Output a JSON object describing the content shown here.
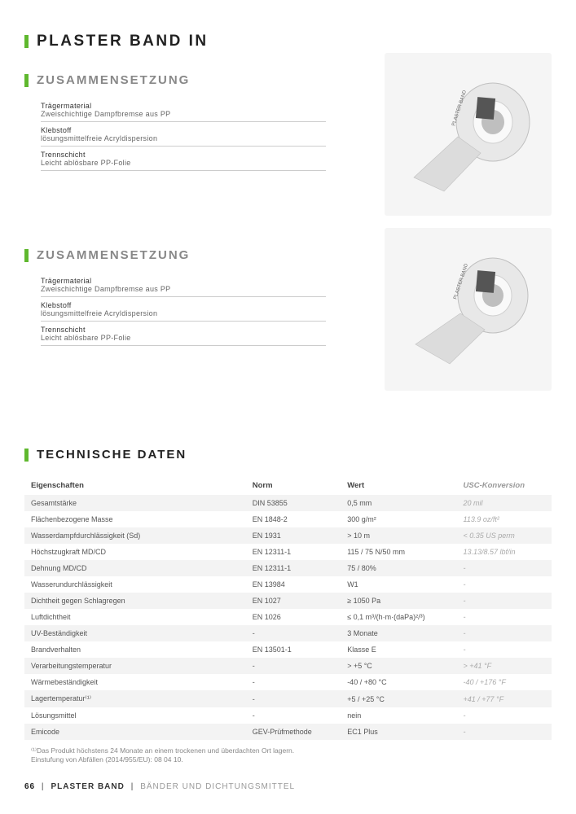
{
  "colors": {
    "accent": "#5fb82e",
    "heading": "#222222",
    "subheading": "#888888",
    "body": "#555555",
    "muted": "#aaaaaa",
    "stripe": "#f3f3f3",
    "border": "#cccccc",
    "imagebg": "#f5f5f5"
  },
  "page_title": "PLASTER BAND IN",
  "composition": {
    "heading": "ZUSAMMENSETZUNG",
    "items": [
      {
        "label": "Trägermaterial",
        "value": "Zweischichtige Dampfbremse aus PP"
      },
      {
        "label": "Klebstoff",
        "value": "lösungsmittelfreie Acryldispersion"
      },
      {
        "label": "Trennschicht",
        "value": "Leicht ablösbare PP-Folie"
      }
    ]
  },
  "tech": {
    "heading": "TECHNISCHE DATEN",
    "columns": [
      "Eigenschaften",
      "Norm",
      "Wert",
      "USC-Konversion"
    ],
    "rows": [
      [
        "Gesamtstärke",
        "DIN 53855",
        "0,5 mm",
        "20 mil"
      ],
      [
        "Flächenbezogene Masse",
        "EN 1848-2",
        "300 g/m²",
        "113.9 oz/ft²"
      ],
      [
        "Wasserdampfdurchlässigkeit (Sd)",
        "EN 1931",
        "> 10 m",
        "< 0.35 US perm"
      ],
      [
        "Höchstzugkraft MD/CD",
        "EN 12311-1",
        "115 / 75 N/50 mm",
        "13.13/8.57 lbf/in"
      ],
      [
        "Dehnung MD/CD",
        "EN 12311-1",
        "75 / 80%",
        "-"
      ],
      [
        "Wasserundurchlässigkeit",
        "EN 13984",
        "W1",
        "-"
      ],
      [
        "Dichtheit gegen Schlagregen",
        "EN 1027",
        "≥ 1050 Pa",
        "-"
      ],
      [
        "Luftdichtheit",
        "EN 1026",
        "≤ 0,1 m³/(h·m·(daPa)²/³)",
        "-"
      ],
      [
        "UV-Beständigkeit",
        "-",
        "3 Monate",
        "-"
      ],
      [
        "Brandverhalten",
        "EN 13501-1",
        "Klasse E",
        "-"
      ],
      [
        "Verarbeitungstemperatur",
        "-",
        "> +5 °C",
        "> +41 °F"
      ],
      [
        "Wärmebeständigkeit",
        "-",
        "-40 / +80 °C",
        "-40 / +176 °F"
      ],
      [
        "Lagertemperatur⁽¹⁾",
        "-",
        "+5 / +25 °C",
        "+41 / +77 °F"
      ],
      [
        "Lösungsmittel",
        "-",
        "nein",
        "-"
      ],
      [
        "Emicode",
        "GEV-Prüfmethode",
        "EC1 Plus",
        "-"
      ]
    ],
    "footnote_1": "⁽¹⁾Das Produkt höchstens 24 Monate an einem trockenen und überdachten Ort lagern.",
    "footnote_2": "Einstufung von Abfällen (2014/955/EU): 08 04 10.",
    "col_widths": [
      "42%",
      "18%",
      "22%",
      "18%"
    ]
  },
  "footer": {
    "page": "66",
    "product": "PLASTER BAND",
    "category": "BÄNDER UND DICHTUNGSMITTEL"
  }
}
